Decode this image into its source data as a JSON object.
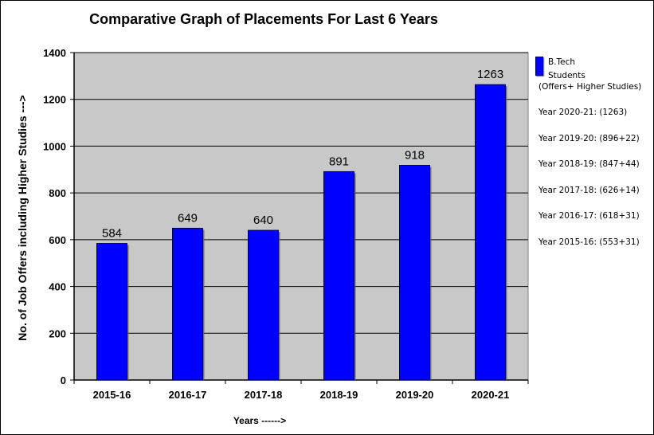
{
  "chart_data": {
    "type": "bar",
    "title": "Comparative Graph of Placements For Last 6 Years",
    "xlabel": "Years ------>",
    "ylabel": "No. of Job Offers including Higher Studies --->",
    "categories": [
      "2015-16",
      "2016-17",
      "2017-18",
      "2018-19",
      "2019-20",
      "2020-21"
    ],
    "series": [
      {
        "name": "B.Tech Students",
        "values": [
          584,
          649,
          640,
          891,
          918,
          1263
        ],
        "color": "#0000ff"
      }
    ],
    "data_labels": [
      "584",
      "649",
      "640",
      "891",
      "918",
      "1263"
    ],
    "ylim": [
      0,
      1400
    ],
    "yticks": [
      0,
      200,
      400,
      600,
      800,
      1000,
      1200,
      1400
    ],
    "grid": true,
    "plot_background": "#c8c8c8",
    "legend": {
      "placement": "right",
      "series_label": "B.Tech Students",
      "subtitle": "(Offers+ Higher Studies)",
      "notes": [
        "Year 2020-21: (1263)",
        "Year 2019-20: (896+22)",
        "Year 2018-19: (847+44)",
        "Year 2017-18: (626+14)",
        "Year 2016-17: (618+31)",
        "Year 2015-16: (553+31)"
      ]
    }
  }
}
